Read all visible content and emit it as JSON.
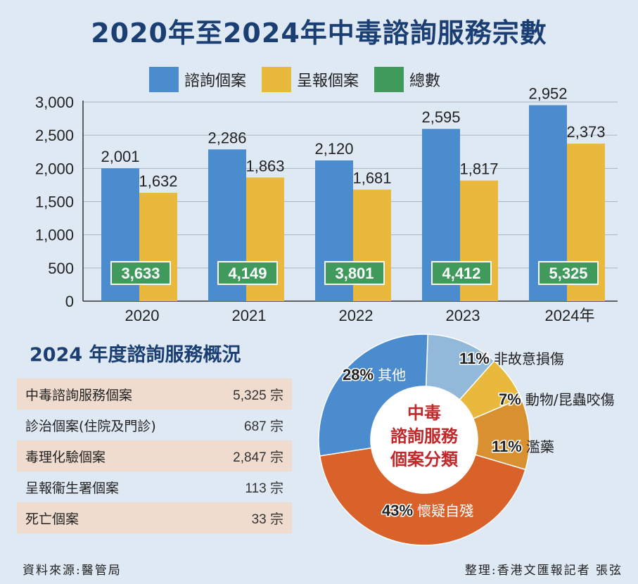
{
  "title": "2020年至2024年中毒諮詢服務宗數",
  "legend": [
    {
      "label": "諮詢個案",
      "color": "#4b8ccf"
    },
    {
      "label": "呈報個案",
      "color": "#e8b93d"
    },
    {
      "label": "總數",
      "color": "#3f9a5c"
    }
  ],
  "chart_data": {
    "type": "bar",
    "title": "2020年至2024年中毒諮詢服務宗數",
    "categories": [
      "2020",
      "2021",
      "2022",
      "2023",
      "2024年"
    ],
    "series": [
      {
        "name": "諮詢個案",
        "values": [
          2001,
          2286,
          2120,
          2595,
          2952
        ],
        "labels": [
          "2,001",
          "2,286",
          "2,120",
          "2,595",
          "2,952"
        ],
        "color": "#4b8ccf"
      },
      {
        "name": "呈報個案",
        "values": [
          1632,
          1863,
          1681,
          1817,
          2373
        ],
        "labels": [
          "1,632",
          "1,863",
          "1,681",
          "1,817",
          "2,373"
        ],
        "color": "#e8b93d"
      }
    ],
    "totals": {
      "name": "總數",
      "values": [
        3633,
        4149,
        3801,
        4412,
        5325
      ],
      "labels": [
        "3,633",
        "4,149",
        "3,801",
        "4,412",
        "5,325"
      ],
      "color": "#3f9a5c"
    },
    "ylim": [
      0,
      3000
    ],
    "yticks": [
      0,
      500,
      1000,
      1500,
      2000,
      2500,
      3000
    ],
    "ytick_labels": [
      "0",
      "500",
      "1,000",
      "1,500",
      "2,000",
      "2,500",
      "3,000"
    ],
    "grid": true
  },
  "overview": {
    "title": "2024 年度諮詢服務概況",
    "rows": [
      {
        "label": "中毒諮詢服務個案",
        "value": "5,325 宗"
      },
      {
        "label": "診治個案(住院及門診)",
        "value": "687 宗"
      },
      {
        "label": "毒理化驗個案",
        "value": "2,847 宗"
      },
      {
        "label": "呈報衞生署個案",
        "value": "113 宗"
      },
      {
        "label": "死亡個案",
        "value": "33 宗"
      }
    ]
  },
  "donut": {
    "center_lines": [
      "中毒",
      "諮詢服務",
      "個案分類"
    ],
    "slices": [
      {
        "label": "其他",
        "pct_label": "28%",
        "value": 28,
        "color": "#4b8ccf"
      },
      {
        "label": "非故意損傷",
        "pct_label": "11%",
        "value": 11,
        "color": "#93b9da"
      },
      {
        "label": "動物/昆蟲咬傷",
        "pct_label": "7%",
        "value": 7,
        "color": "#e8b93d"
      },
      {
        "label": "濫藥",
        "pct_label": "11%",
        "value": 11,
        "color": "#d99030"
      },
      {
        "label": "懷疑自殘",
        "pct_label": "43%",
        "value": 43,
        "color": "#d9622b"
      }
    ]
  },
  "footer": {
    "source": "資料來源:醫管局",
    "credit": "整理:香港文匯報記者 張弦"
  }
}
